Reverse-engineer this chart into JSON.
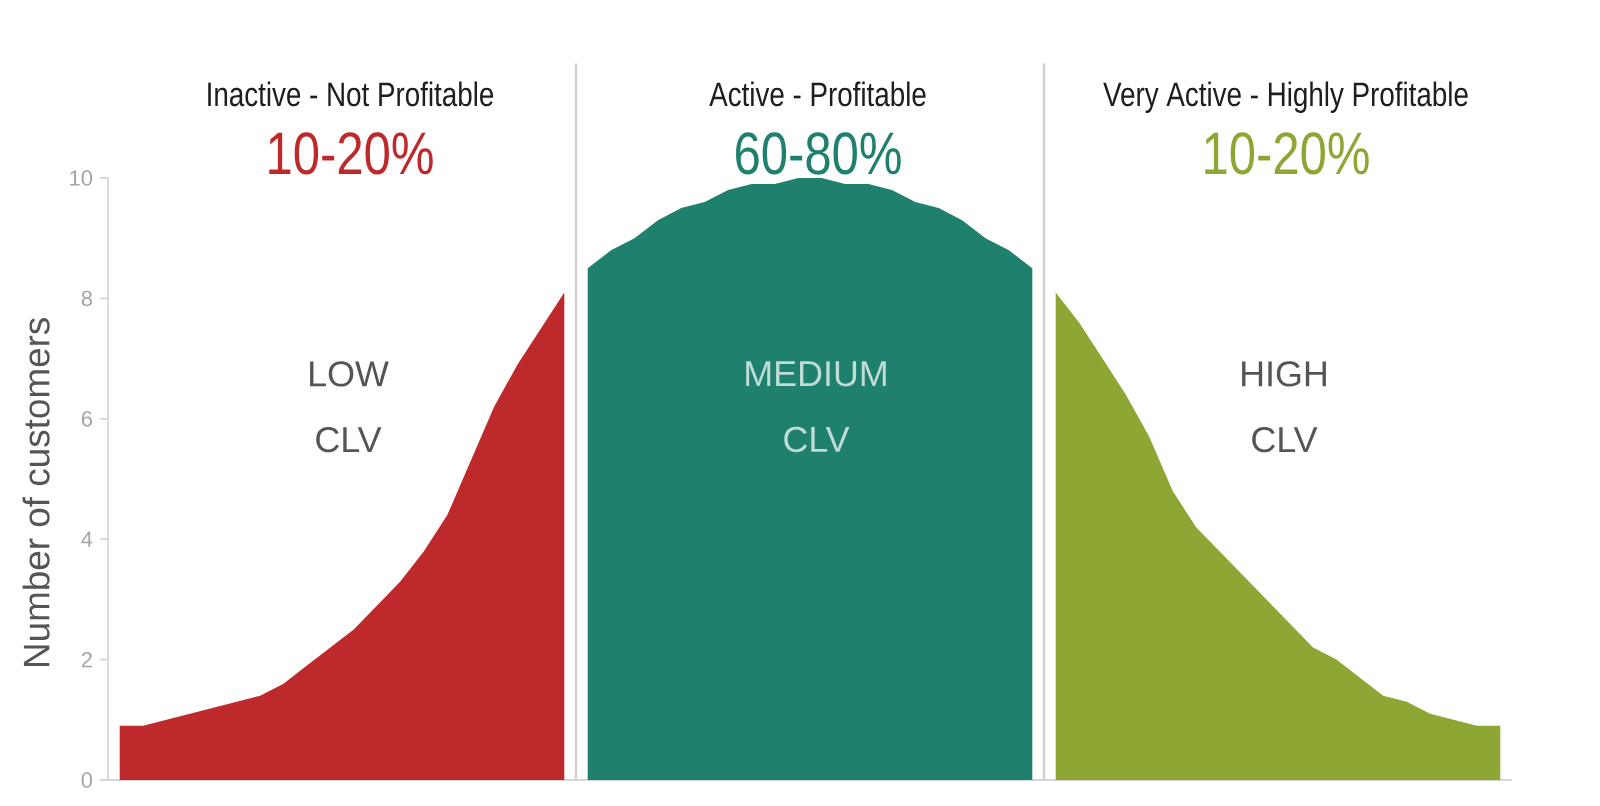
{
  "chart_data": {
    "type": "area",
    "categories": [
      null,
      null,
      null,
      null,
      null,
      null,
      null,
      null,
      null,
      null,
      null,
      null,
      null,
      null,
      null,
      null,
      null,
      null,
      null,
      null,
      null,
      null,
      null,
      null,
      null,
      null,
      null,
      null,
      null,
      null,
      null,
      null,
      null,
      null,
      null,
      null,
      null,
      null,
      null,
      null,
      null,
      null,
      null,
      null,
      null,
      null,
      null,
      null,
      null,
      null,
      null,
      null,
      null,
      null,
      null,
      null,
      null,
      null,
      null,
      null
    ],
    "ylabel": "Number of customers",
    "ylim": [
      0,
      10
    ],
    "yticks": [
      0,
      2,
      4,
      6,
      8,
      10
    ],
    "tick_labels": "y",
    "series": [
      {
        "name": "LOW CLV",
        "color": "#be2a2c",
        "values": [
          0.9,
          0.9,
          1.0,
          1.1,
          1.2,
          1.3,
          1.4,
          1.6,
          1.9,
          2.2,
          2.5,
          2.9,
          3.3,
          3.8,
          4.4,
          5.3,
          6.2,
          6.9,
          7.5,
          8.1,
          null,
          null,
          null,
          null,
          null,
          null,
          null,
          null,
          null,
          null,
          null,
          null,
          null,
          null,
          null,
          null,
          null,
          null,
          null,
          null,
          null,
          null,
          null,
          null,
          null,
          null,
          null,
          null,
          null,
          null,
          null,
          null,
          null,
          null,
          null,
          null,
          null,
          null,
          null,
          null
        ]
      },
      {
        "name": "MEDIUM CLV",
        "color": "#1f806d",
        "values": [
          null,
          null,
          null,
          null,
          null,
          null,
          null,
          null,
          null,
          null,
          null,
          null,
          null,
          null,
          null,
          null,
          null,
          null,
          null,
          null,
          8.5,
          8.8,
          9.0,
          9.3,
          9.5,
          9.6,
          9.8,
          9.9,
          9.9,
          10.0,
          10.0,
          9.9,
          9.9,
          9.8,
          9.6,
          9.5,
          9.3,
          9.0,
          8.8,
          8.5,
          null,
          null,
          null,
          null,
          null,
          null,
          null,
          null,
          null,
          null,
          null,
          null,
          null,
          null,
          null,
          null,
          null,
          null,
          null,
          null
        ]
      },
      {
        "name": "HIGH CLV",
        "color": "#8ea634",
        "values": [
          null,
          null,
          null,
          null,
          null,
          null,
          null,
          null,
          null,
          null,
          null,
          null,
          null,
          null,
          null,
          null,
          null,
          null,
          null,
          null,
          null,
          null,
          null,
          null,
          null,
          null,
          null,
          null,
          null,
          null,
          null,
          null,
          null,
          null,
          null,
          null,
          null,
          null,
          null,
          null,
          8.1,
          7.6,
          7.0,
          6.4,
          5.7,
          4.8,
          4.2,
          3.8,
          3.4,
          3.0,
          2.6,
          2.2,
          2.0,
          1.7,
          1.4,
          1.3,
          1.1,
          1.0,
          0.9,
          0.9
        ]
      }
    ],
    "annotations": [
      "Inactive - Not Profitable",
      "10-20%",
      "Active - Profitable",
      "60-80%",
      "Very Active - Highly Profitable",
      "10-20%"
    ]
  }
}
